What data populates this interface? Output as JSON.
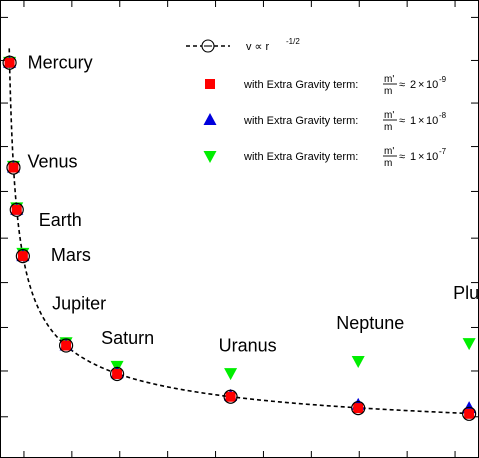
{
  "chart_data": {
    "type": "scatter",
    "title": "",
    "xlabel": "",
    "ylabel": "",
    "xlim": [
      0,
      40
    ],
    "ylim": [
      0,
      55
    ],
    "grid": false,
    "legend_position": "top-right",
    "colors": {
      "model": "#000000",
      "red": "#ff0000",
      "blue": "#0000dd",
      "green": "#00ee00"
    },
    "planets": [
      {
        "name": "Mercury",
        "r": 0.39
      },
      {
        "name": "Venus",
        "r": 0.72
      },
      {
        "name": "Earth",
        "r": 1.0
      },
      {
        "name": "Mars",
        "r": 1.52
      },
      {
        "name": "Jupiter",
        "r": 5.2
      },
      {
        "name": "Saturn",
        "r": 9.54
      },
      {
        "name": "Uranus",
        "r": 19.2
      },
      {
        "name": "Neptune",
        "r": 30.06
      },
      {
        "name": "Pluto",
        "r": 39.5
      }
    ],
    "series": [
      {
        "label_prefix": "with Extra Gravity term:",
        "ratio_base": "2",
        "ratio_exp": "-9",
        "marker": "square",
        "color": "#ff0000",
        "values": [
          47.9,
          35.0,
          29.8,
          24.1,
          13.1,
          9.6,
          6.8,
          5.4,
          4.7
        ]
      },
      {
        "label_prefix": "with Extra Gravity term:",
        "ratio_base": "1",
        "ratio_exp": "-8",
        "marker": "triangle-up",
        "color": "#0000dd",
        "values": [
          47.9,
          35.0,
          29.8,
          24.1,
          13.1,
          9.7,
          6.9,
          5.8,
          5.4
        ]
      },
      {
        "label_prefix": "with Extra Gravity term:",
        "ratio_base": "1",
        "ratio_exp": "-7",
        "marker": "triangle-down",
        "color": "#00ee00",
        "values": [
          48.0,
          35.2,
          30.1,
          24.5,
          13.5,
          10.6,
          9.7,
          11.2,
          13.4
        ]
      }
    ],
    "model": {
      "name": "v ∝ r",
      "exponent": "-1/2",
      "values": [
        47.9,
        35.0,
        29.8,
        24.1,
        13.1,
        9.6,
        6.8,
        5.4,
        4.7
      ],
      "curve_coefficient": 29.8
    },
    "legend_ratio_num": "m'",
    "legend_ratio_den": "m",
    "legend_times": "×",
    "legend_tenbase": "10",
    "legend_approx": "≈"
  }
}
